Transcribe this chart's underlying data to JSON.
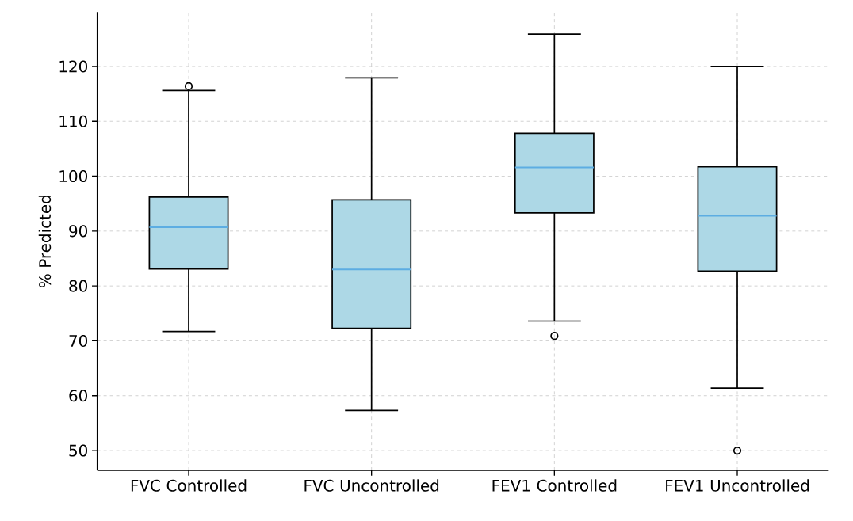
{
  "chart_data": {
    "type": "box",
    "ylabel": "% Predicted",
    "categories": [
      "FVC Controlled",
      "FVC Uncontrolled",
      "FEV1 Controlled",
      "FEV1 Uncontrolled"
    ],
    "boxes": [
      {
        "low": 71.7,
        "q1": 83.1,
        "median": 90.7,
        "q3": 96.2,
        "high": 115.6,
        "outliers": [
          116.4
        ]
      },
      {
        "low": 57.3,
        "q1": 72.3,
        "median": 83.0,
        "q3": 95.7,
        "high": 117.9
      },
      {
        "low": 73.6,
        "q1": 93.3,
        "median": 101.6,
        "q3": 107.8,
        "high": 125.9,
        "outliers": [
          70.9
        ]
      },
      {
        "low": 61.4,
        "q1": 82.7,
        "median": 92.8,
        "q3": 101.7,
        "high": 120.0,
        "outliers": [
          50.0
        ]
      }
    ],
    "color": "#add8e6",
    "ylim": [
      46.4,
      129.9
    ],
    "yticks": [
      50,
      60,
      70,
      80,
      90,
      100,
      110,
      120
    ],
    "grid": true
  }
}
